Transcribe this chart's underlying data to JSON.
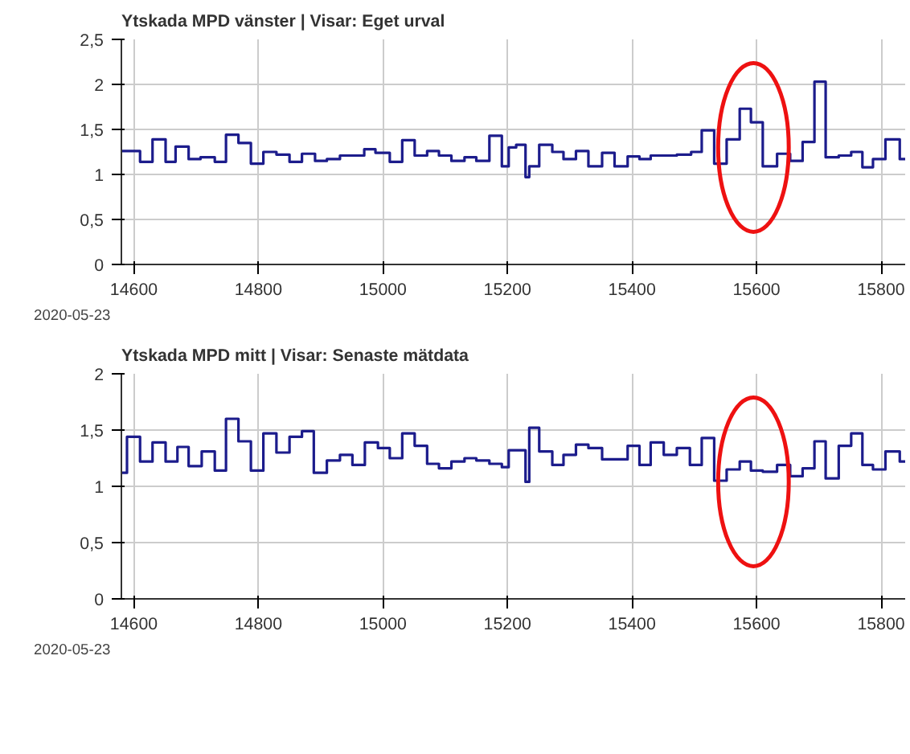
{
  "chart_data": [
    {
      "type": "step",
      "title": "Ytskada MPD vänster  | Visar: Eget urval",
      "x": [
        14580,
        14610,
        14630,
        14651,
        14667,
        14688,
        14707,
        14730,
        14748,
        14768,
        14788,
        14808,
        14829,
        14850,
        14870,
        14891,
        14910,
        14931,
        14970,
        14988,
        15011,
        15031,
        15051,
        15071,
        15090,
        15110,
        15131,
        15150,
        15171,
        15191,
        15202,
        15214,
        15229,
        15235,
        15251,
        15272,
        15290,
        15310,
        15330,
        15352,
        15372,
        15393,
        15412,
        15430,
        15472,
        15495,
        15512,
        15532,
        15552,
        15573,
        15591,
        15610,
        15633,
        15654,
        15674,
        15693,
        15711,
        15732,
        15752,
        15770,
        15787,
        15807,
        15830,
        15840
      ],
      "series": [
        {
          "name": "2020-05-23",
          "color": "#1c1c8c",
          "values": [
            1.26,
            1.14,
            1.39,
            1.14,
            1.31,
            1.17,
            1.19,
            1.14,
            1.44,
            1.35,
            1.12,
            1.25,
            1.22,
            1.14,
            1.23,
            1.15,
            1.17,
            1.21,
            1.28,
            1.24,
            1.14,
            1.38,
            1.21,
            1.26,
            1.21,
            1.15,
            1.19,
            1.15,
            1.43,
            1.09,
            1.3,
            1.33,
            0.97,
            1.09,
            1.33,
            1.25,
            1.17,
            1.26,
            1.09,
            1.24,
            1.09,
            1.2,
            1.17,
            1.21,
            1.22,
            1.25,
            1.49,
            1.12,
            1.39,
            1.73,
            1.58,
            1.09,
            1.23,
            1.15,
            1.36,
            2.03,
            1.19,
            1.21,
            1.25,
            1.08,
            1.17,
            1.39,
            1.17,
            1.17
          ]
        }
      ],
      "xlim": [
        14580,
        15840
      ],
      "xticks": [
        14600,
        14800,
        15000,
        15200,
        15400,
        15600,
        15800
      ],
      "ylim": [
        0,
        2.5
      ],
      "yticks": [
        0,
        {
          "value": 0.5,
          "label": "0,5"
        },
        1,
        {
          "value": 1.5,
          "label": "1,5"
        },
        2,
        {
          "value": 2.5,
          "label": "2,5"
        }
      ],
      "grid": true,
      "legend": "bottom left"
    },
    {
      "type": "step",
      "title": "Ytskada MPD mitt  | Visar: Senaste mätdata",
      "x": [
        14580,
        14589,
        14610,
        14630,
        14651,
        14670,
        14688,
        14709,
        14730,
        14748,
        14768,
        14788,
        14808,
        14829,
        14850,
        14870,
        14889,
        14910,
        14931,
        14951,
        14971,
        14992,
        15011,
        15031,
        15051,
        15071,
        15090,
        15110,
        15131,
        15150,
        15171,
        15191,
        15202,
        15229,
        15235,
        15251,
        15272,
        15290,
        15310,
        15330,
        15352,
        15372,
        15393,
        15412,
        15430,
        15451,
        15472,
        15493,
        15512,
        15532,
        15552,
        15573,
        15591,
        15610,
        15633,
        15654,
        15674,
        15693,
        15711,
        15732,
        15752,
        15770,
        15787,
        15807,
        15830,
        15840
      ],
      "series": [
        {
          "name": "2020-05-23",
          "color": "#1c1c8c",
          "values": [
            1.12,
            1.44,
            1.22,
            1.39,
            1.22,
            1.35,
            1.18,
            1.31,
            1.14,
            1.6,
            1.4,
            1.14,
            1.47,
            1.3,
            1.44,
            1.49,
            1.12,
            1.23,
            1.28,
            1.19,
            1.39,
            1.34,
            1.25,
            1.47,
            1.36,
            1.2,
            1.16,
            1.22,
            1.25,
            1.23,
            1.2,
            1.17,
            1.32,
            1.04,
            1.52,
            1.31,
            1.19,
            1.28,
            1.37,
            1.34,
            1.24,
            1.24,
            1.36,
            1.19,
            1.39,
            1.28,
            1.34,
            1.19,
            1.43,
            1.05,
            1.15,
            1.22,
            1.14,
            1.13,
            1.19,
            1.09,
            1.16,
            1.4,
            1.07,
            1.36,
            1.47,
            1.19,
            1.15,
            1.31,
            1.22,
            1.22
          ]
        }
      ],
      "xlim": [
        14580,
        15840
      ],
      "xticks": [
        14600,
        14800,
        15000,
        15200,
        15400,
        15600,
        15800
      ],
      "ylim": [
        0,
        2
      ],
      "yticks": [
        0,
        {
          "value": 0.5,
          "label": "0,5"
        },
        1,
        {
          "value": 1.5,
          "label": "1,5"
        },
        2
      ],
      "grid": true,
      "legend": "bottom left"
    }
  ]
}
